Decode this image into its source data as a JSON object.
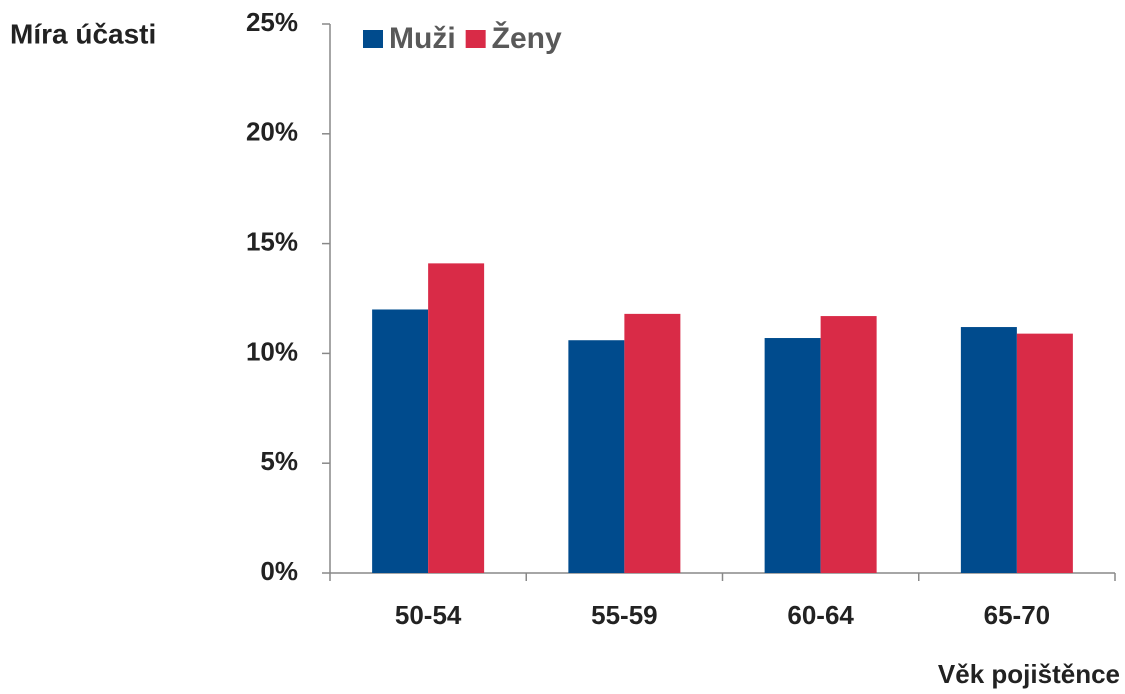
{
  "chart_data": {
    "type": "bar",
    "title": "Míra účasti",
    "x_label": "Věk pojištěnce",
    "categories": [
      "50-54",
      "55-59",
      "60-64",
      "65-70"
    ],
    "series": [
      {
        "name": "Muži",
        "color": "#004b8d",
        "values": [
          12.0,
          10.6,
          10.7,
          11.2
        ]
      },
      {
        "name": "Ženy",
        "color": "#d92b47",
        "values": [
          14.1,
          11.8,
          11.7,
          10.9
        ]
      }
    ],
    "ylim": [
      0,
      25
    ],
    "yticks": [
      {
        "value": 0,
        "label": "0%"
      },
      {
        "value": 5,
        "label": "5%"
      },
      {
        "value": 10,
        "label": "10%"
      },
      {
        "value": 15,
        "label": "15%"
      },
      {
        "value": 20,
        "label": "20%"
      },
      {
        "value": 25,
        "label": "25%"
      }
    ],
    "legend": "top"
  }
}
